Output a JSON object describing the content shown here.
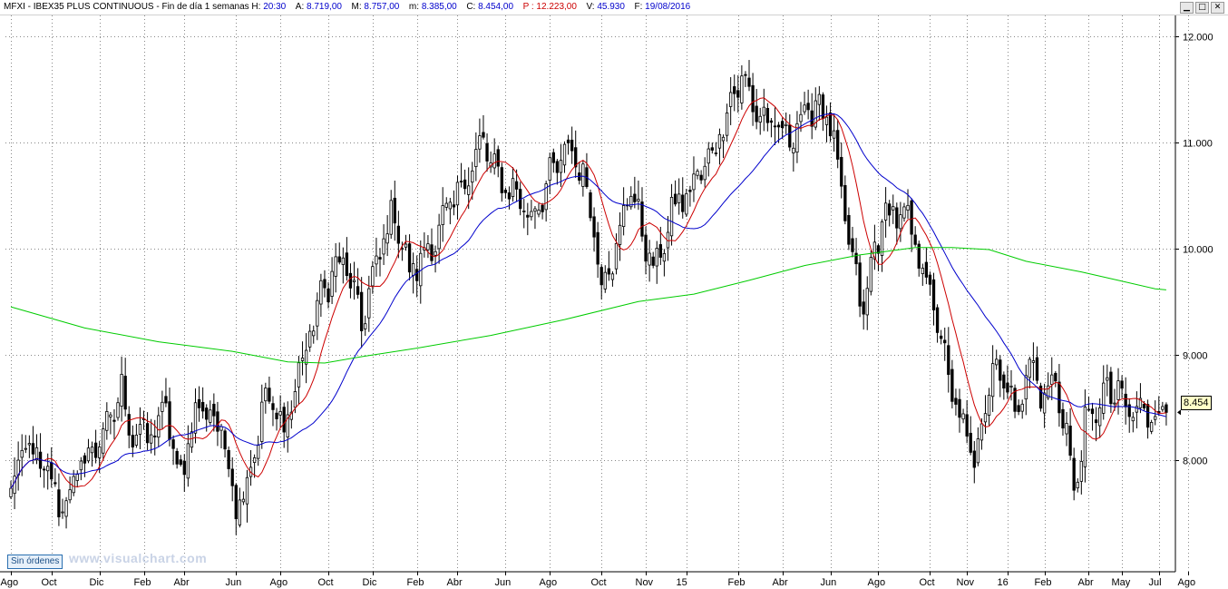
{
  "header": {
    "title": "MFXI - IBEX35 PLUS CONTINUOUS - Fin de día 1 semanas",
    "h_label": "H:",
    "h_value": "20:30",
    "a_label": "A:",
    "a_value": "8.719,00",
    "m_label": "M:",
    "m_value": "8.757,00",
    "mm_label": "m:",
    "mm_value": "8.385,00",
    "c_label": "C:",
    "c_value": "8.454,00",
    "p_label": "P :",
    "p_value": "12.223,00",
    "v_label": "V:",
    "v_value": "45.930",
    "f_label": "F:",
    "f_value": "19/08/2016",
    "colors": {
      "label": "#000000",
      "value": "#0000cc",
      "p_value": "#cc0000"
    }
  },
  "window_buttons": {
    "minimize": "▁",
    "maximize": "□",
    "close": "✕"
  },
  "orders_badge": "Sin órdenes",
  "watermark": "www.visualchart.com",
  "last_price_label": "8.454",
  "chart_data": {
    "type": "candlestick",
    "title": "",
    "xlabel": "",
    "ylabel": "",
    "ylim": [
      6950,
      12200
    ],
    "grid": true,
    "y_ticks": [
      8000,
      9000,
      10000,
      11000,
      12000
    ],
    "y_tick_labels": [
      "8.000",
      "9.000",
      "10.000",
      "11.000",
      "12.000"
    ],
    "x_tick_labels": [
      "Ago",
      "Oct",
      "Dic",
      "Feb",
      "Abr",
      "Jun",
      "Ago",
      "Oct",
      "Dic",
      "Feb",
      "Abr",
      "Jun",
      "Ago",
      "Oct",
      "Nov",
      "15",
      "Feb",
      "Abr",
      "Jun",
      "Ago",
      "Oct",
      "Nov",
      "16",
      "Feb",
      "Abr",
      "May",
      "Jul",
      "Ago"
    ],
    "x_tick_weeks": [
      0,
      11,
      24,
      36,
      47,
      61,
      73,
      86,
      98,
      110,
      121,
      134,
      146,
      160,
      172,
      183,
      197,
      209,
      222,
      235,
      249,
      259,
      270,
      280,
      292,
      301,
      311,
      319
    ],
    "anchors": [
      [
        0,
        7700
      ],
      [
        4,
        8150
      ],
      [
        10,
        7850
      ],
      [
        14,
        7550
      ],
      [
        19,
        7950
      ],
      [
        26,
        8300
      ],
      [
        30,
        8650
      ],
      [
        33,
        8250
      ],
      [
        39,
        8250
      ],
      [
        42,
        8550
      ],
      [
        45,
        7800
      ],
      [
        51,
        8550
      ],
      [
        57,
        8300
      ],
      [
        61,
        7600
      ],
      [
        64,
        7800
      ],
      [
        69,
        8600
      ],
      [
        74,
        8300
      ],
      [
        81,
        9200
      ],
      [
        85,
        9650
      ],
      [
        90,
        9900
      ],
      [
        95,
        9300
      ],
      [
        101,
        10100
      ],
      [
        104,
        10350
      ],
      [
        108,
        9750
      ],
      [
        115,
        10100
      ],
      [
        120,
        10450
      ],
      [
        128,
        11000
      ],
      [
        132,
        10650
      ],
      [
        136,
        10550
      ],
      [
        141,
        10300
      ],
      [
        145,
        10600
      ],
      [
        151,
        10950
      ],
      [
        154,
        10800
      ],
      [
        157,
        10400
      ],
      [
        160,
        9700
      ],
      [
        165,
        10100
      ],
      [
        168,
        10650
      ],
      [
        171,
        10100
      ],
      [
        175,
        9800
      ],
      [
        179,
        10350
      ],
      [
        184,
        10550
      ],
      [
        190,
        10900
      ],
      [
        196,
        11500
      ],
      [
        198,
        11600
      ],
      [
        202,
        11300
      ],
      [
        206,
        11150
      ],
      [
        210,
        11050
      ],
      [
        214,
        11200
      ],
      [
        219,
        11400
      ],
      [
        222,
        11150
      ],
      [
        225,
        10500
      ],
      [
        228,
        9850
      ],
      [
        231,
        9400
      ],
      [
        234,
        10000
      ],
      [
        237,
        10350
      ],
      [
        242,
        10300
      ],
      [
        247,
        9850
      ],
      [
        251,
        9300
      ],
      [
        255,
        8600
      ],
      [
        258,
        8300
      ],
      [
        261,
        8000
      ],
      [
        263,
        8400
      ],
      [
        266,
        8900
      ],
      [
        269,
        8800
      ],
      [
        272,
        8450
      ],
      [
        276,
        8900
      ],
      [
        280,
        8600
      ],
      [
        283,
        8750
      ],
      [
        286,
        8250
      ],
      [
        288,
        7700
      ],
      [
        291,
        8300
      ],
      [
        294,
        8500
      ],
      [
        297,
        8650
      ],
      [
        300,
        8600
      ],
      [
        303,
        8454
      ]
    ],
    "ma_red_period": 10,
    "ma_blue_period": 30,
    "series": [
      {
        "style": "line",
        "color": "#cc0000"
      },
      {
        "style": "line",
        "color": "#0000cc"
      },
      {
        "style": "line",
        "color": "#00cc00"
      }
    ],
    "ma_green_points": [
      [
        0,
        9450
      ],
      [
        20,
        9250
      ],
      [
        40,
        9120
      ],
      [
        60,
        9030
      ],
      [
        75,
        8930
      ],
      [
        85,
        8920
      ],
      [
        95,
        8980
      ],
      [
        110,
        9060
      ],
      [
        130,
        9180
      ],
      [
        150,
        9330
      ],
      [
        170,
        9500
      ],
      [
        185,
        9570
      ],
      [
        200,
        9700
      ],
      [
        215,
        9840
      ],
      [
        230,
        9940
      ],
      [
        245,
        10010
      ],
      [
        255,
        10010
      ],
      [
        265,
        9990
      ],
      [
        275,
        9880
      ],
      [
        290,
        9780
      ],
      [
        300,
        9700
      ],
      [
        310,
        9620
      ],
      [
        313,
        9610
      ]
    ],
    "last_close": 8454,
    "total_weeks": 314
  }
}
